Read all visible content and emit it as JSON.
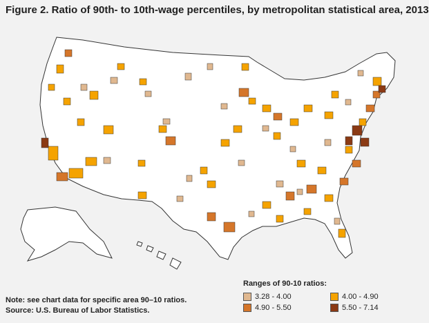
{
  "title": "Figure 2. Ratio of 90th- to 10th-wage percentiles, by metropolitan statistical area, 2013",
  "legend": {
    "title": "Ranges of 90-10 ratios:",
    "items": [
      {
        "label": "3.28 - 4.00",
        "color": "#e0b890"
      },
      {
        "label": "4.00 - 4.90",
        "color": "#f5a300"
      },
      {
        "label": "4.90 - 5.50",
        "color": "#d5762a"
      },
      {
        "label": "5.50 - 7.14",
        "color": "#8b3a14"
      }
    ]
  },
  "notes": {
    "line1": "Note: see chart data for specific area 90–10 ratios.",
    "line2": "Source: U.S. Bureau of Labor Statistics."
  },
  "map_colors": {
    "land": "#ffffff",
    "border": "#333333",
    "background": "#f2f2f2"
  }
}
